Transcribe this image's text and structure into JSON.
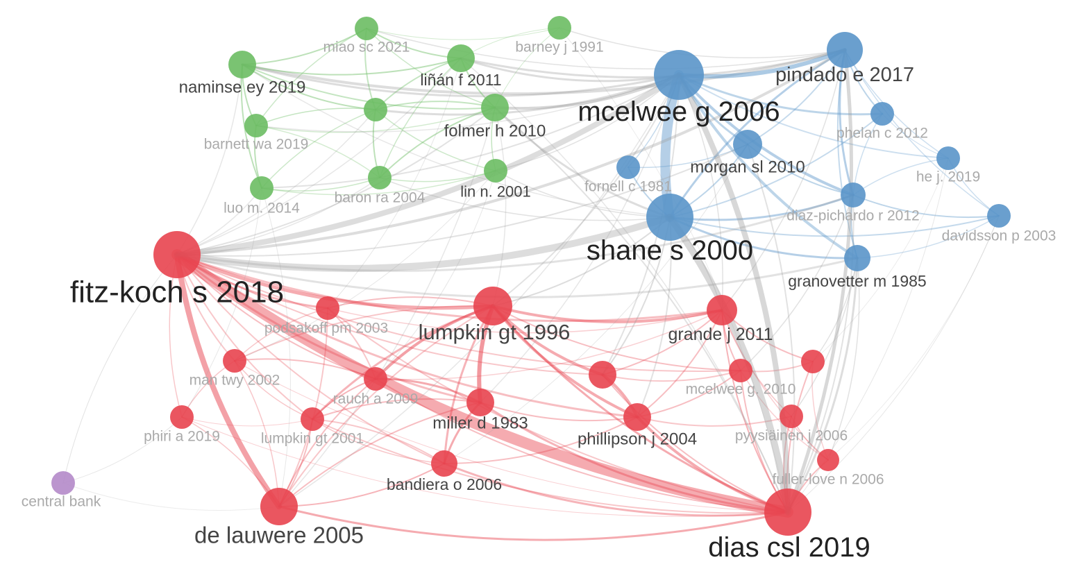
{
  "colors": {
    "red": "#e8444f",
    "green": "#6cbd63",
    "blue": "#5a95c9",
    "purple": "#b48ac9",
    "gray_edge": "#9e9e9e",
    "label_dark": "#222222",
    "label_mid": "#444444",
    "label_light": "#aaaaaa"
  },
  "clusters": {
    "1": "red",
    "2": "green",
    "3": "blue",
    "4": "purple"
  },
  "nodes": [
    {
      "id": "fitz",
      "label": "fitz-koch s 2018",
      "cluster": "1"
    },
    {
      "id": "dias",
      "label": "dias csl 2019",
      "cluster": "1"
    },
    {
      "id": "lauwere",
      "label": "de lauwere 2005",
      "cluster": "1"
    },
    {
      "id": "lumpkin96",
      "label": "lumpkin gt 1996",
      "cluster": "1"
    },
    {
      "id": "grande",
      "label": "grande j 2011",
      "cluster": "1"
    },
    {
      "id": "podsakoff",
      "label": "podsakoff pm 2003",
      "cluster": "1"
    },
    {
      "id": "man",
      "label": "man twy 2002",
      "cluster": "1"
    },
    {
      "id": "rauch",
      "label": "rauch a 2009",
      "cluster": "1"
    },
    {
      "id": "phiri",
      "label": "phiri a 2019",
      "cluster": "1"
    },
    {
      "id": "lumpkin01",
      "label": "lumpkin gt 2001",
      "cluster": "1"
    },
    {
      "id": "miller",
      "label": "miller d 1983",
      "cluster": "1"
    },
    {
      "id": "bandiera",
      "label": "bandiera o 2006",
      "cluster": "1"
    },
    {
      "id": "phillipson",
      "label": "phillipson j 2004",
      "cluster": "1"
    },
    {
      "id": "unlabeled1",
      "label": "",
      "cluster": "1"
    },
    {
      "id": "mcelwee10",
      "label": "mcelwee g. 2010",
      "cluster": "1"
    },
    {
      "id": "unlabeled2",
      "label": "",
      "cluster": "1"
    },
    {
      "id": "pyysiainen",
      "label": "pyysiäinen j 2006",
      "cluster": "1"
    },
    {
      "id": "fuller",
      "label": "fuller-love n 2006",
      "cluster": "1"
    },
    {
      "id": "miao",
      "label": "miao sc 2021",
      "cluster": "2"
    },
    {
      "id": "barney",
      "label": "barney j 1991",
      "cluster": "2"
    },
    {
      "id": "naminse",
      "label": "naminse ey 2019",
      "cluster": "2"
    },
    {
      "id": "linan",
      "label": "liñán f 2011",
      "cluster": "2"
    },
    {
      "id": "folmer",
      "label": "folmer h 2010",
      "cluster": "2"
    },
    {
      "id": "barnett",
      "label": "barnett wa 2019",
      "cluster": "2"
    },
    {
      "id": "unlabeled3",
      "label": "",
      "cluster": "2"
    },
    {
      "id": "baron",
      "label": "baron ra 2004",
      "cluster": "2"
    },
    {
      "id": "linn",
      "label": "lin n. 2001",
      "cluster": "2"
    },
    {
      "id": "luo",
      "label": "luo m. 2014",
      "cluster": "2"
    },
    {
      "id": "mcelwee06",
      "label": "mcelwee g 2006",
      "cluster": "3"
    },
    {
      "id": "pindado",
      "label": "pindado e 2017",
      "cluster": "3"
    },
    {
      "id": "phelan",
      "label": "phelan c 2012",
      "cluster": "3"
    },
    {
      "id": "morgan",
      "label": "morgan sl 2010",
      "cluster": "3"
    },
    {
      "id": "fornell",
      "label": "fornell c 1981",
      "cluster": "3"
    },
    {
      "id": "he",
      "label": "he j. 2019",
      "cluster": "3"
    },
    {
      "id": "shane",
      "label": "shane s 2000",
      "cluster": "3"
    },
    {
      "id": "diazp",
      "label": "diaz-pichardo r 2012",
      "cluster": "3"
    },
    {
      "id": "davidsson",
      "label": "davidsson p 2003",
      "cluster": "3"
    },
    {
      "id": "granovetter",
      "label": "granovetter m 1985",
      "cluster": "3"
    },
    {
      "id": "central",
      "label": "central bank",
      "cluster": "4"
    }
  ]
}
